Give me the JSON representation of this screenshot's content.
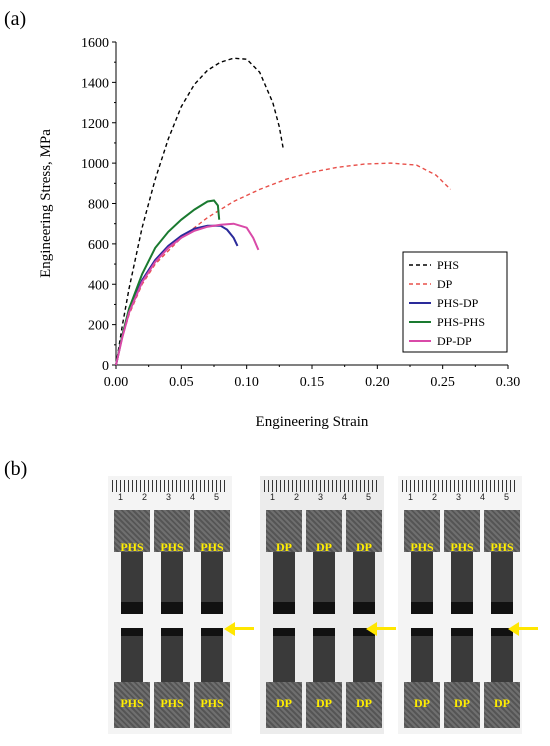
{
  "panel_a_label": "(a)",
  "panel_b_label": "(b)",
  "chart_data": {
    "type": "line",
    "title": "",
    "xlabel": "Engineering Strain",
    "ylabel": "Engineering Stress, MPa",
    "xlim": [
      0,
      0.3
    ],
    "ylim": [
      0,
      1600
    ],
    "xticks": [
      "0.00",
      "0.05",
      "0.10",
      "0.15",
      "0.20",
      "0.25",
      "0.30"
    ],
    "yticks": [
      "0",
      "200",
      "400",
      "600",
      "800",
      "1000",
      "1200",
      "1400",
      "1600"
    ],
    "grid": false,
    "legend_position": "lower-right",
    "series": [
      {
        "name": "PHS",
        "color": "#000000",
        "dash": true,
        "x": [
          0,
          0.005,
          0.01,
          0.02,
          0.03,
          0.04,
          0.05,
          0.06,
          0.07,
          0.08,
          0.09,
          0.1,
          0.11,
          0.12,
          0.125,
          0.128
        ],
        "y": [
          0,
          200,
          380,
          680,
          920,
          1120,
          1280,
          1390,
          1460,
          1500,
          1520,
          1515,
          1450,
          1300,
          1180,
          1070
        ]
      },
      {
        "name": "DP",
        "color": "#e8504a",
        "dash": true,
        "x": [
          0,
          0.005,
          0.01,
          0.02,
          0.03,
          0.05,
          0.07,
          0.09,
          0.11,
          0.13,
          0.15,
          0.17,
          0.19,
          0.21,
          0.23,
          0.245,
          0.256
        ],
        "y": [
          0,
          140,
          250,
          400,
          500,
          630,
          730,
          810,
          870,
          920,
          955,
          980,
          995,
          1000,
          990,
          940,
          870
        ]
      },
      {
        "name": "PHS-DP",
        "color": "#2a2a9a",
        "dash": false,
        "x": [
          0,
          0.005,
          0.01,
          0.02,
          0.03,
          0.04,
          0.05,
          0.06,
          0.07,
          0.08,
          0.085,
          0.09,
          0.093
        ],
        "y": [
          0,
          150,
          270,
          420,
          520,
          590,
          640,
          675,
          690,
          690,
          670,
          630,
          590
        ]
      },
      {
        "name": "PHS-PHS",
        "color": "#1a7a30",
        "dash": false,
        "x": [
          0,
          0.005,
          0.01,
          0.02,
          0.03,
          0.04,
          0.05,
          0.06,
          0.07,
          0.075,
          0.078,
          0.079
        ],
        "y": [
          0,
          150,
          280,
          450,
          580,
          660,
          720,
          770,
          810,
          815,
          790,
          720
        ]
      },
      {
        "name": "DP-DP",
        "color": "#d94aa8",
        "dash": false,
        "x": [
          0,
          0.005,
          0.01,
          0.02,
          0.03,
          0.04,
          0.05,
          0.06,
          0.07,
          0.08,
          0.09,
          0.1,
          0.105,
          0.109
        ],
        "y": [
          0,
          140,
          260,
          410,
          510,
          580,
          630,
          665,
          685,
          695,
          700,
          680,
          630,
          570
        ]
      }
    ]
  },
  "photos": [
    {
      "ruler_numbers": [
        "1",
        "2",
        "3",
        "4",
        "5"
      ],
      "top_labels": [
        "PHS",
        "PHS",
        "PHS"
      ],
      "bottom_labels": [
        "PHS",
        "PHS",
        "PHS"
      ]
    },
    {
      "ruler_numbers": [
        "1",
        "2",
        "3",
        "4",
        "5"
      ],
      "top_labels": [
        "DP",
        "DP",
        "DP"
      ],
      "bottom_labels": [
        "DP",
        "DP",
        "DP"
      ]
    },
    {
      "ruler_numbers": [
        "1",
        "2",
        "3",
        "4",
        "5"
      ],
      "top_labels": [
        "PHS",
        "PHS",
        "PHS"
      ],
      "bottom_labels": [
        "DP",
        "DP",
        "DP"
      ]
    }
  ],
  "colors": {
    "label_yellow": "#ffee00",
    "arrow_yellow": "#ffe600"
  }
}
